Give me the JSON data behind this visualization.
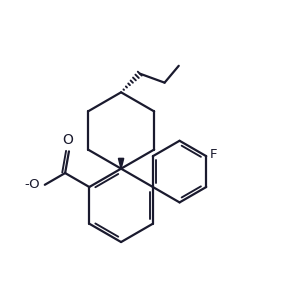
{
  "background_color": "#ffffff",
  "line_color": "#1a1a2e",
  "line_width": 1.6,
  "figsize": [
    2.95,
    3.05
  ],
  "dpi": 100,
  "F_label": "F",
  "O_label": "O",
  "O_neg_label": "-O",
  "font_size": 9.5
}
